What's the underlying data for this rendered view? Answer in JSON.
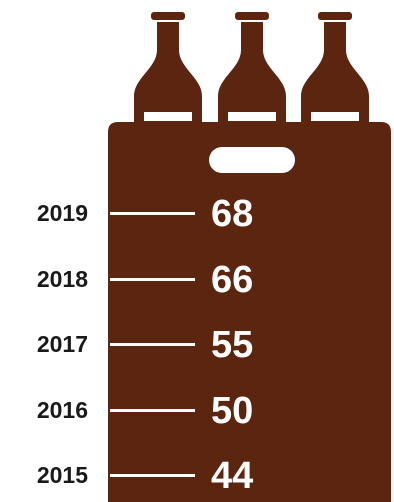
{
  "chart_data": {
    "type": "bar",
    "categories": [
      "2019",
      "2018",
      "2017",
      "2016",
      "2015"
    ],
    "values": [
      68,
      66,
      55,
      50,
      44
    ],
    "title": "",
    "xlabel": "",
    "ylabel": ""
  },
  "colors": {
    "crate": "#5c2510",
    "bottle": "#5c2510",
    "label": "#ffffff",
    "tick": "#ffffff",
    "year_text": "#1a1a1a"
  },
  "icons": {
    "bottles": "beer-bottle-icon",
    "crate": "beer-crate-icon"
  }
}
